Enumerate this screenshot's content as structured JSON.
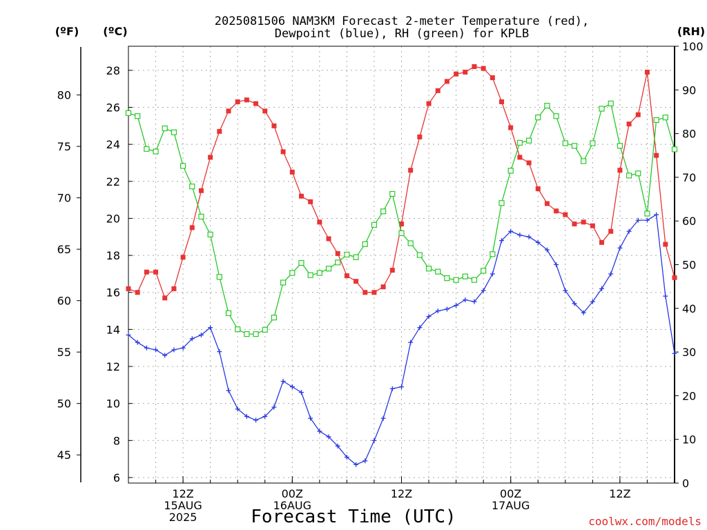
{
  "title_lines": [
    "2025081506 NAM3KM Forecast 2-meter Temperature (red),",
    "Dewpoint (blue), RH (green) for KPLB"
  ],
  "units": {
    "fahrenheit": "(ºF)",
    "celsius": "(ºC)",
    "rh": "(RH)"
  },
  "credit": "coolwx.com/models",
  "chart_data": {
    "type": "line",
    "title": "2025081506 NAM3KM Forecast 2-meter Temperature (red), Dewpoint (blue), RH (green) for KPLB",
    "xlabel": "Forecast Time (UTC)",
    "x_hours_since_start": [
      0,
      1,
      2,
      3,
      4,
      5,
      6,
      7,
      8,
      9,
      10,
      11,
      12,
      13,
      14,
      15,
      16,
      17,
      18,
      19,
      20,
      21,
      22,
      23,
      24,
      25,
      26,
      27,
      28,
      29,
      30,
      31,
      32,
      33,
      34,
      35,
      36,
      37,
      38,
      39,
      40,
      41,
      42,
      43,
      44,
      45,
      46,
      47,
      48,
      49,
      50,
      51,
      52,
      53,
      54,
      55,
      56,
      57,
      58,
      59,
      60
    ],
    "x_start": "2025-08-15 06Z",
    "x_tick_hours": [
      6,
      18,
      30,
      42,
      54
    ],
    "x_tick_labels": [
      [
        "12Z",
        "15AUG",
        "2025"
      ],
      [
        "00Z",
        "16AUG"
      ],
      [
        "12Z"
      ],
      [
        "00Z",
        "17AUG"
      ],
      [
        "12Z"
      ]
    ],
    "left_axis": {
      "label": "(ºC)",
      "ylim": [
        5.7,
        29.3
      ],
      "ticks": [
        6,
        8,
        10,
        12,
        14,
        16,
        18,
        20,
        22,
        24,
        26,
        28
      ]
    },
    "far_left_axis": {
      "label": "(ºF)",
      "ticks": [
        45,
        50,
        55,
        60,
        65,
        70,
        75,
        80
      ]
    },
    "right_axis": {
      "label": "(RH)",
      "ylim": [
        0,
        100
      ],
      "ticks": [
        0,
        10,
        20,
        30,
        40,
        50,
        60,
        70,
        80,
        90,
        100
      ]
    },
    "grid": true,
    "series": [
      {
        "name": "2-meter Temperature",
        "axis": "celsius",
        "color": "#e83434",
        "marker": "filled-square",
        "values": [
          16.2,
          16.0,
          17.1,
          17.1,
          15.7,
          16.2,
          17.9,
          19.5,
          21.5,
          23.3,
          24.7,
          25.8,
          26.3,
          26.4,
          26.2,
          25.8,
          25.0,
          23.6,
          22.5,
          21.2,
          20.9,
          19.8,
          18.9,
          18.1,
          16.9,
          16.6,
          16.0,
          16.0,
          16.3,
          17.2,
          19.7,
          22.6,
          24.4,
          26.2,
          26.9,
          27.4,
          27.8,
          27.9,
          28.2,
          28.1,
          27.6,
          26.3,
          24.9,
          23.3,
          23.0,
          21.6,
          20.8,
          20.4,
          20.2,
          19.7,
          19.8,
          19.6,
          18.7,
          19.3,
          22.6,
          25.1,
          25.6,
          27.9,
          23.4,
          18.6,
          16.8
        ]
      },
      {
        "name": "Dewpoint",
        "axis": "celsius",
        "color": "#2838e0",
        "marker": "plus",
        "values": [
          13.7,
          13.3,
          13.0,
          12.9,
          12.6,
          12.9,
          13.0,
          13.5,
          13.7,
          14.1,
          12.8,
          10.7,
          9.7,
          9.3,
          9.1,
          9.3,
          9.8,
          11.2,
          10.9,
          10.6,
          9.2,
          8.5,
          8.2,
          7.7,
          7.1,
          6.7,
          6.9,
          8.0,
          9.2,
          10.8,
          10.9,
          13.3,
          14.1,
          14.7,
          15.0,
          15.1,
          15.3,
          15.6,
          15.5,
          16.1,
          17.0,
          18.8,
          19.3,
          19.1,
          19.0,
          18.7,
          18.3,
          17.5,
          16.1,
          15.4,
          14.9,
          15.5,
          16.2,
          17.0,
          18.4,
          19.3,
          19.9,
          19.9,
          20.2,
          15.8,
          12.7
        ]
      },
      {
        "name": "RH",
        "axis": "rh",
        "color": "#28c828",
        "marker": "open-square",
        "values": [
          84.7,
          84.0,
          76.5,
          75.9,
          81.2,
          80.3,
          72.6,
          67.9,
          61.0,
          56.9,
          47.2,
          38.9,
          35.2,
          34.1,
          34.1,
          35.1,
          37.9,
          45.9,
          48.1,
          50.4,
          47.6,
          48.1,
          49.1,
          50.5,
          52.3,
          51.7,
          54.7,
          59.1,
          62.2,
          66.2,
          57.2,
          54.9,
          52.2,
          49.1,
          48.4,
          46.9,
          46.5,
          47.3,
          46.5,
          48.6,
          52.4,
          64.1,
          71.5,
          77.9,
          78.4,
          83.7,
          86.4,
          84.0,
          77.8,
          77.2,
          73.7,
          77.8,
          85.7,
          86.9,
          77.2,
          70.4,
          70.9,
          61.7,
          83.1,
          83.7,
          76.4
        ]
      }
    ]
  }
}
